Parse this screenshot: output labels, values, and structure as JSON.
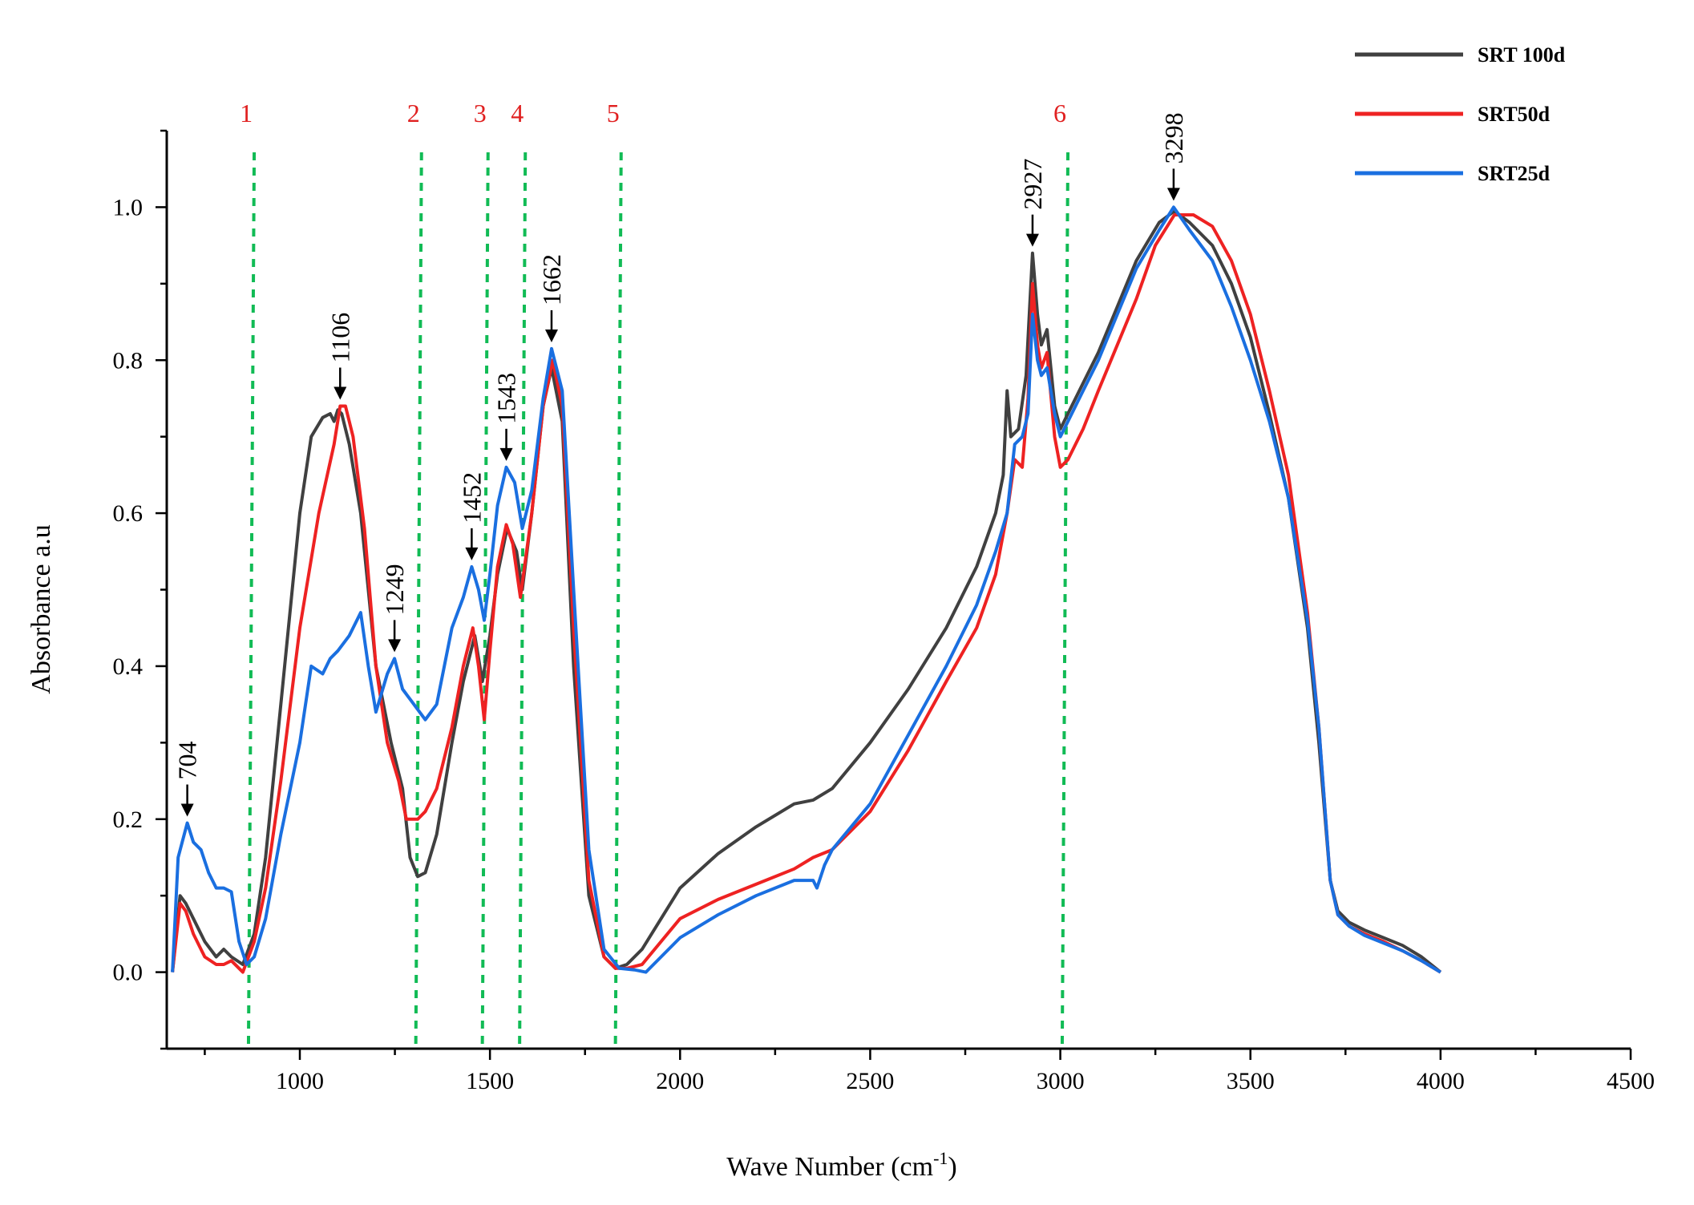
{
  "chart_data": {
    "type": "line",
    "xlabel": "Wave Number (cm",
    "xlabel_sup": "-1",
    "xlabel_close": ")",
    "ylabel": "Absorbance  a.u",
    "xlim": [
      650,
      4500
    ],
    "ylim": [
      -0.1,
      1.1
    ],
    "x_ticks": [
      1000,
      1500,
      2000,
      2500,
      3000,
      3500,
      4000,
      4500
    ],
    "x_tick_labels": [
      "1000",
      "1500",
      "2000",
      "2500",
      "3000",
      "3500",
      "4000",
      "4500"
    ],
    "y_ticks": [
      0.0,
      0.2,
      0.4,
      0.6,
      0.8,
      1.0
    ],
    "y_tick_labels": [
      "0.0",
      "0.2",
      "0.4",
      "0.6",
      "0.8",
      "1.0"
    ],
    "legend_position": "top-right",
    "grid": false,
    "colors": {
      "SRT 100d": "#404040",
      "SRT50d": "#ee2222",
      "SRT25d": "#1a6fe0",
      "region_line": "#11bb55",
      "region_label": "#e02020"
    },
    "series": [
      {
        "name": "SRT 100d",
        "color": "#404040",
        "points": [
          [
            665,
            0.0
          ],
          [
            685,
            0.1
          ],
          [
            700,
            0.09
          ],
          [
            720,
            0.07
          ],
          [
            750,
            0.04
          ],
          [
            780,
            0.02
          ],
          [
            800,
            0.03
          ],
          [
            820,
            0.02
          ],
          [
            850,
            0.01
          ],
          [
            880,
            0.05
          ],
          [
            910,
            0.15
          ],
          [
            950,
            0.35
          ],
          [
            1000,
            0.6
          ],
          [
            1030,
            0.7
          ],
          [
            1060,
            0.725
          ],
          [
            1080,
            0.73
          ],
          [
            1090,
            0.72
          ],
          [
            1100,
            0.735
          ],
          [
            1110,
            0.73
          ],
          [
            1130,
            0.69
          ],
          [
            1160,
            0.6
          ],
          [
            1200,
            0.4
          ],
          [
            1240,
            0.3
          ],
          [
            1270,
            0.24
          ],
          [
            1290,
            0.15
          ],
          [
            1310,
            0.125
          ],
          [
            1330,
            0.13
          ],
          [
            1360,
            0.18
          ],
          [
            1400,
            0.3
          ],
          [
            1430,
            0.38
          ],
          [
            1460,
            0.44
          ],
          [
            1480,
            0.38
          ],
          [
            1500,
            0.44
          ],
          [
            1520,
            0.52
          ],
          [
            1545,
            0.58
          ],
          [
            1570,
            0.55
          ],
          [
            1585,
            0.5
          ],
          [
            1610,
            0.6
          ],
          [
            1640,
            0.74
          ],
          [
            1662,
            0.79
          ],
          [
            1690,
            0.72
          ],
          [
            1720,
            0.4
          ],
          [
            1760,
            0.1
          ],
          [
            1800,
            0.02
          ],
          [
            1830,
            0.005
          ],
          [
            1860,
            0.01
          ],
          [
            1900,
            0.03
          ],
          [
            1950,
            0.07
          ],
          [
            2000,
            0.11
          ],
          [
            2100,
            0.155
          ],
          [
            2200,
            0.19
          ],
          [
            2300,
            0.22
          ],
          [
            2350,
            0.225
          ],
          [
            2400,
            0.24
          ],
          [
            2500,
            0.3
          ],
          [
            2600,
            0.37
          ],
          [
            2700,
            0.45
          ],
          [
            2780,
            0.53
          ],
          [
            2830,
            0.6
          ],
          [
            2850,
            0.65
          ],
          [
            2860,
            0.76
          ],
          [
            2870,
            0.7
          ],
          [
            2890,
            0.71
          ],
          [
            2910,
            0.78
          ],
          [
            2927,
            0.94
          ],
          [
            2940,
            0.86
          ],
          [
            2950,
            0.82
          ],
          [
            2965,
            0.84
          ],
          [
            2985,
            0.74
          ],
          [
            3000,
            0.71
          ],
          [
            3020,
            0.73
          ],
          [
            3060,
            0.77
          ],
          [
            3100,
            0.81
          ],
          [
            3150,
            0.87
          ],
          [
            3200,
            0.93
          ],
          [
            3260,
            0.98
          ],
          [
            3300,
            0.995
          ],
          [
            3340,
            0.98
          ],
          [
            3400,
            0.95
          ],
          [
            3450,
            0.9
          ],
          [
            3500,
            0.83
          ],
          [
            3550,
            0.73
          ],
          [
            3600,
            0.62
          ],
          [
            3650,
            0.45
          ],
          [
            3680,
            0.3
          ],
          [
            3710,
            0.12
          ],
          [
            3730,
            0.08
          ],
          [
            3760,
            0.065
          ],
          [
            3800,
            0.055
          ],
          [
            3850,
            0.045
          ],
          [
            3900,
            0.035
          ],
          [
            3950,
            0.02
          ],
          [
            4000,
            0.0
          ]
        ]
      },
      {
        "name": "SRT50d",
        "color": "#ee2222",
        "points": [
          [
            665,
            0.0
          ],
          [
            685,
            0.09
          ],
          [
            700,
            0.08
          ],
          [
            720,
            0.05
          ],
          [
            750,
            0.02
          ],
          [
            780,
            0.01
          ],
          [
            800,
            0.01
          ],
          [
            820,
            0.015
          ],
          [
            850,
            0.0
          ],
          [
            880,
            0.04
          ],
          [
            910,
            0.11
          ],
          [
            950,
            0.25
          ],
          [
            1000,
            0.45
          ],
          [
            1050,
            0.6
          ],
          [
            1090,
            0.69
          ],
          [
            1106,
            0.74
          ],
          [
            1120,
            0.74
          ],
          [
            1140,
            0.7
          ],
          [
            1170,
            0.58
          ],
          [
            1200,
            0.4
          ],
          [
            1230,
            0.3
          ],
          [
            1260,
            0.25
          ],
          [
            1280,
            0.2
          ],
          [
            1310,
            0.2
          ],
          [
            1330,
            0.21
          ],
          [
            1360,
            0.24
          ],
          [
            1400,
            0.32
          ],
          [
            1430,
            0.4
          ],
          [
            1455,
            0.45
          ],
          [
            1470,
            0.4
          ],
          [
            1485,
            0.33
          ],
          [
            1500,
            0.42
          ],
          [
            1520,
            0.53
          ],
          [
            1543,
            0.585
          ],
          [
            1560,
            0.56
          ],
          [
            1580,
            0.49
          ],
          [
            1610,
            0.6
          ],
          [
            1640,
            0.74
          ],
          [
            1665,
            0.8
          ],
          [
            1690,
            0.74
          ],
          [
            1720,
            0.45
          ],
          [
            1760,
            0.12
          ],
          [
            1800,
            0.02
          ],
          [
            1830,
            0.005
          ],
          [
            1860,
            0.005
          ],
          [
            1900,
            0.01
          ],
          [
            1950,
            0.04
          ],
          [
            2000,
            0.07
          ],
          [
            2100,
            0.095
          ],
          [
            2200,
            0.115
          ],
          [
            2300,
            0.135
          ],
          [
            2350,
            0.15
          ],
          [
            2400,
            0.16
          ],
          [
            2500,
            0.21
          ],
          [
            2600,
            0.29
          ],
          [
            2700,
            0.38
          ],
          [
            2780,
            0.45
          ],
          [
            2830,
            0.52
          ],
          [
            2860,
            0.6
          ],
          [
            2880,
            0.67
          ],
          [
            2900,
            0.66
          ],
          [
            2915,
            0.75
          ],
          [
            2927,
            0.9
          ],
          [
            2940,
            0.82
          ],
          [
            2950,
            0.79
          ],
          [
            2965,
            0.81
          ],
          [
            2985,
            0.7
          ],
          [
            3000,
            0.66
          ],
          [
            3020,
            0.67
          ],
          [
            3060,
            0.71
          ],
          [
            3100,
            0.76
          ],
          [
            3150,
            0.82
          ],
          [
            3200,
            0.88
          ],
          [
            3250,
            0.95
          ],
          [
            3300,
            0.99
          ],
          [
            3350,
            0.99
          ],
          [
            3400,
            0.975
          ],
          [
            3450,
            0.93
          ],
          [
            3500,
            0.86
          ],
          [
            3550,
            0.76
          ],
          [
            3600,
            0.65
          ],
          [
            3650,
            0.47
          ],
          [
            3680,
            0.32
          ],
          [
            3710,
            0.12
          ],
          [
            3730,
            0.075
          ],
          [
            3760,
            0.06
          ],
          [
            3800,
            0.05
          ],
          [
            3850,
            0.04
          ],
          [
            3900,
            0.028
          ],
          [
            3950,
            0.015
          ],
          [
            4000,
            0.0
          ]
        ]
      },
      {
        "name": "SRT25d",
        "color": "#1a6fe0",
        "points": [
          [
            665,
            0.0
          ],
          [
            680,
            0.15
          ],
          [
            704,
            0.195
          ],
          [
            720,
            0.17
          ],
          [
            740,
            0.16
          ],
          [
            760,
            0.13
          ],
          [
            780,
            0.11
          ],
          [
            800,
            0.11
          ],
          [
            820,
            0.105
          ],
          [
            840,
            0.04
          ],
          [
            860,
            0.01
          ],
          [
            880,
            0.02
          ],
          [
            910,
            0.07
          ],
          [
            950,
            0.18
          ],
          [
            1000,
            0.3
          ],
          [
            1030,
            0.4
          ],
          [
            1060,
            0.39
          ],
          [
            1080,
            0.41
          ],
          [
            1100,
            0.42
          ],
          [
            1130,
            0.44
          ],
          [
            1160,
            0.47
          ],
          [
            1180,
            0.4
          ],
          [
            1200,
            0.34
          ],
          [
            1230,
            0.39
          ],
          [
            1249,
            0.41
          ],
          [
            1270,
            0.37
          ],
          [
            1300,
            0.35
          ],
          [
            1330,
            0.33
          ],
          [
            1360,
            0.35
          ],
          [
            1400,
            0.45
          ],
          [
            1430,
            0.49
          ],
          [
            1452,
            0.53
          ],
          [
            1470,
            0.5
          ],
          [
            1485,
            0.46
          ],
          [
            1500,
            0.52
          ],
          [
            1520,
            0.61
          ],
          [
            1543,
            0.66
          ],
          [
            1565,
            0.64
          ],
          [
            1585,
            0.58
          ],
          [
            1610,
            0.63
          ],
          [
            1640,
            0.75
          ],
          [
            1662,
            0.815
          ],
          [
            1690,
            0.76
          ],
          [
            1720,
            0.5
          ],
          [
            1760,
            0.16
          ],
          [
            1800,
            0.03
          ],
          [
            1840,
            0.005
          ],
          [
            1880,
            0.003
          ],
          [
            1910,
            0.0
          ],
          [
            1950,
            0.02
          ],
          [
            2000,
            0.045
          ],
          [
            2100,
            0.075
          ],
          [
            2200,
            0.1
          ],
          [
            2300,
            0.12
          ],
          [
            2350,
            0.12
          ],
          [
            2360,
            0.11
          ],
          [
            2380,
            0.14
          ],
          [
            2400,
            0.16
          ],
          [
            2500,
            0.22
          ],
          [
            2600,
            0.31
          ],
          [
            2700,
            0.4
          ],
          [
            2780,
            0.48
          ],
          [
            2830,
            0.55
          ],
          [
            2860,
            0.6
          ],
          [
            2880,
            0.69
          ],
          [
            2900,
            0.7
          ],
          [
            2915,
            0.73
          ],
          [
            2927,
            0.86
          ],
          [
            2940,
            0.8
          ],
          [
            2950,
            0.78
          ],
          [
            2965,
            0.79
          ],
          [
            2985,
            0.73
          ],
          [
            3000,
            0.7
          ],
          [
            3020,
            0.72
          ],
          [
            3060,
            0.76
          ],
          [
            3100,
            0.8
          ],
          [
            3150,
            0.86
          ],
          [
            3200,
            0.92
          ],
          [
            3260,
            0.97
          ],
          [
            3298,
            1.0
          ],
          [
            3340,
            0.97
          ],
          [
            3400,
            0.93
          ],
          [
            3450,
            0.87
          ],
          [
            3500,
            0.8
          ],
          [
            3550,
            0.72
          ],
          [
            3600,
            0.62
          ],
          [
            3650,
            0.46
          ],
          [
            3680,
            0.32
          ],
          [
            3710,
            0.12
          ],
          [
            3730,
            0.075
          ],
          [
            3760,
            0.06
          ],
          [
            3800,
            0.048
          ],
          [
            3850,
            0.038
          ],
          [
            3900,
            0.028
          ],
          [
            3950,
            0.015
          ],
          [
            4000,
            0.0
          ]
        ]
      }
    ],
    "region_lines": [
      {
        "label": "1",
        "x": [
          865,
          880
        ]
      },
      {
        "label": "2",
        "x": [
          1305,
          1320
        ]
      },
      {
        "label": "3",
        "x": [
          1480,
          1495
        ]
      },
      {
        "label": "4",
        "x": [
          1578,
          1593
        ]
      },
      {
        "label": "5",
        "x": [
          1830,
          1845
        ]
      },
      {
        "label": "6",
        "x": [
          3005,
          3020
        ]
      }
    ],
    "peak_annotations": [
      {
        "label": "704",
        "x": 704,
        "y": 0.195
      },
      {
        "label": "1106",
        "x": 1106,
        "y": 0.74
      },
      {
        "label": "1249",
        "x": 1249,
        "y": 0.41
      },
      {
        "label": "1452",
        "x": 1452,
        "y": 0.53
      },
      {
        "label": "1543",
        "x": 1543,
        "y": 0.66
      },
      {
        "label": "1662",
        "x": 1662,
        "y": 0.815
      },
      {
        "label": "2927",
        "x": 2927,
        "y": 0.94
      },
      {
        "label": "3298",
        "x": 3298,
        "y": 1.0
      }
    ]
  }
}
